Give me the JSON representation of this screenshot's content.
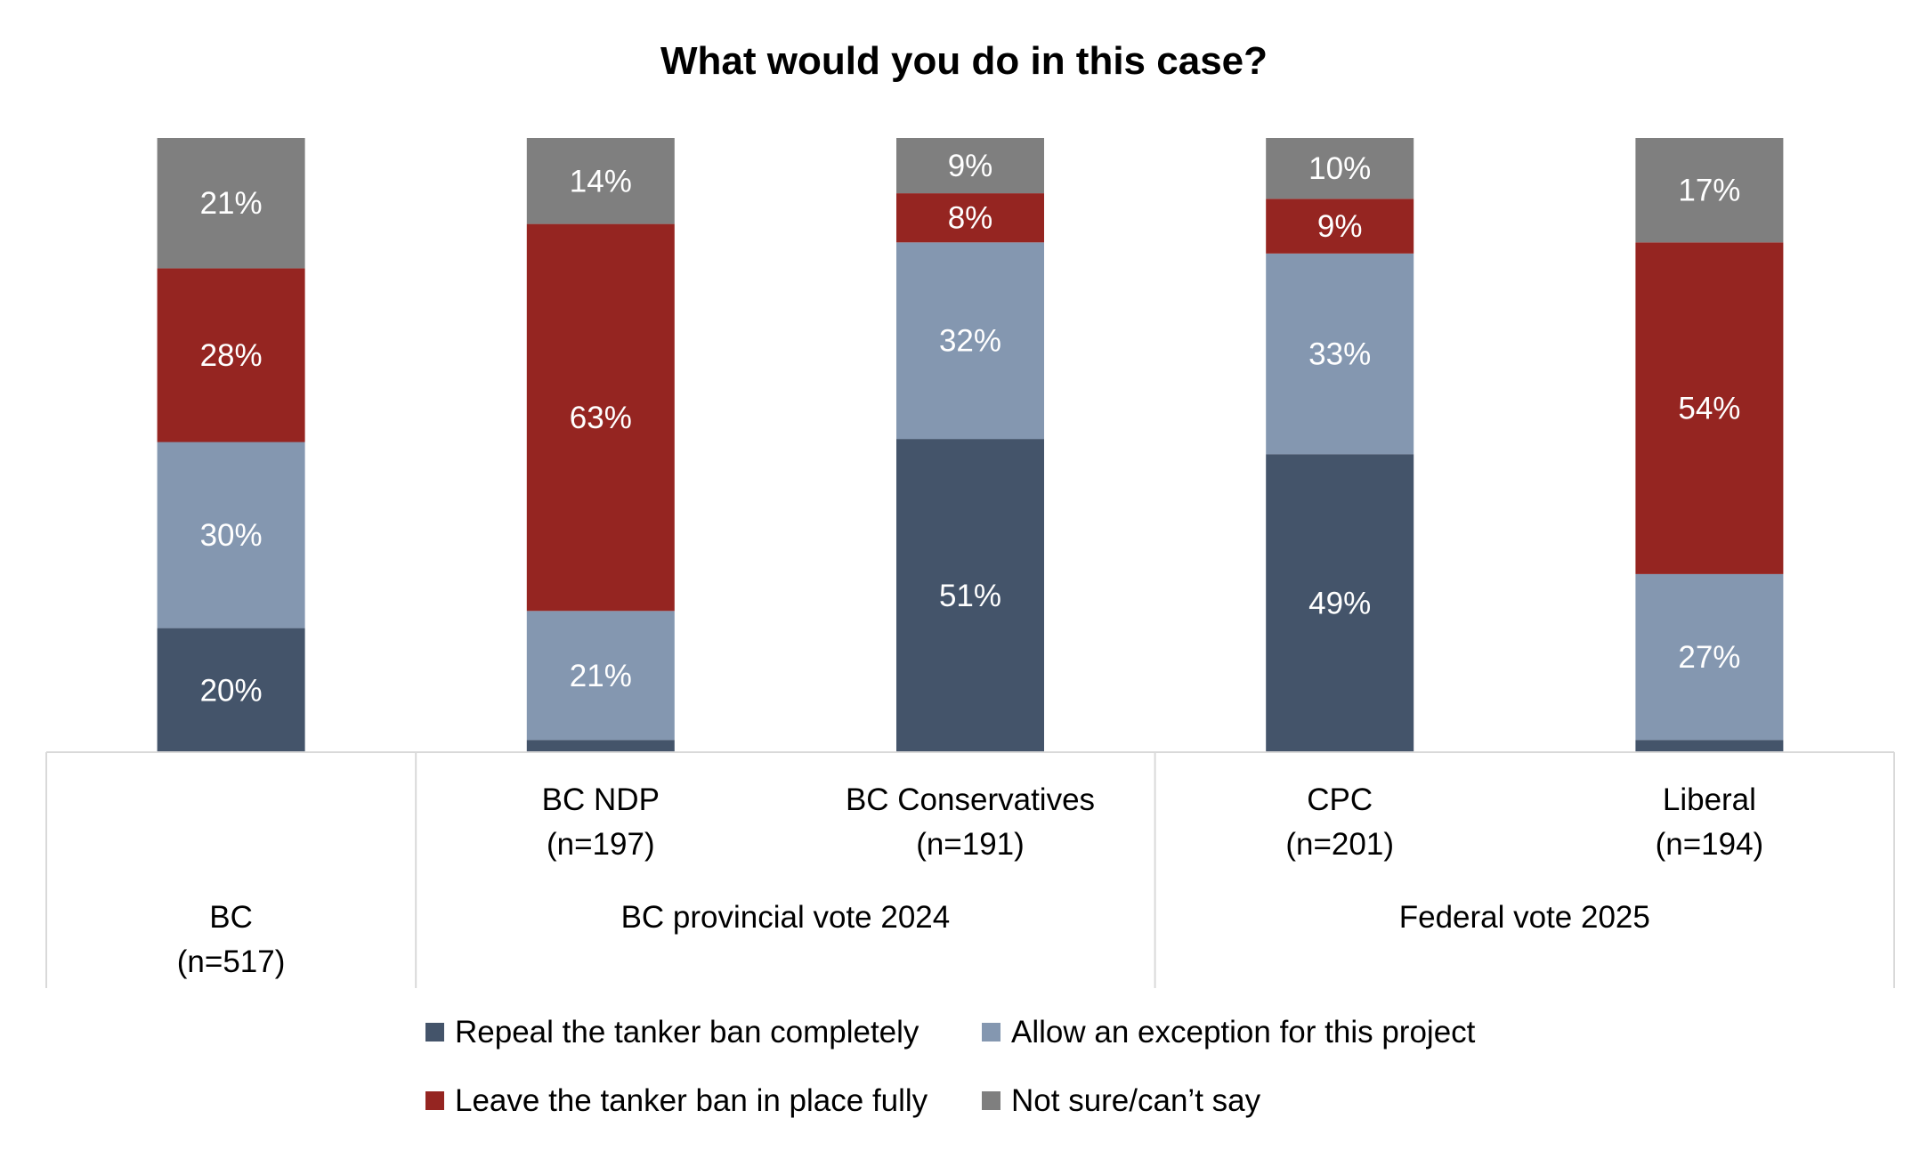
{
  "chart_data": {
    "type": "stacked-bar",
    "title": "What would you do in this case?",
    "categories": [
      {
        "label": "BC",
        "n": "(n=517)"
      },
      {
        "label": "BC NDP",
        "n": "(n=197)"
      },
      {
        "label": "BC Conservatives",
        "n": "(n=191)"
      },
      {
        "label": "CPC",
        "n": "(n=201)"
      },
      {
        "label": "Liberal",
        "n": "(n=194)"
      }
    ],
    "groups": [
      {
        "label": "BC provincial vote 2024",
        "categories": [
          1,
          2
        ]
      },
      {
        "label": "Federal vote 2025",
        "categories": [
          3,
          4
        ]
      }
    ],
    "series": [
      {
        "name": "Repeal the tanker ban completely",
        "color": "#44546A",
        "values": [
          20,
          2,
          51,
          49,
          2
        ],
        "labels": [
          "20%",
          "",
          "51%",
          "49%",
          ""
        ]
      },
      {
        "name": "Allow an exception for this project",
        "color": "#8497B0",
        "values": [
          30,
          21,
          32,
          33,
          27
        ],
        "labels": [
          "30%",
          "21%",
          "32%",
          "33%",
          "27%"
        ]
      },
      {
        "name": "Leave the tanker ban in place fully",
        "color": "#952521",
        "values": [
          28,
          63,
          8,
          9,
          54
        ],
        "labels": [
          "28%",
          "63%",
          "8%",
          "9%",
          "54%"
        ]
      },
      {
        "name": "Not sure/can’t say",
        "color": "#7F7F7F",
        "values": [
          21,
          14,
          9,
          10,
          17
        ],
        "labels": [
          "21%",
          "14%",
          "9%",
          "10%",
          "17%"
        ]
      }
    ],
    "legend_order": [
      0,
      1,
      2,
      3
    ],
    "axis_color": "#D9D9D9",
    "legend_position": "bottom"
  }
}
